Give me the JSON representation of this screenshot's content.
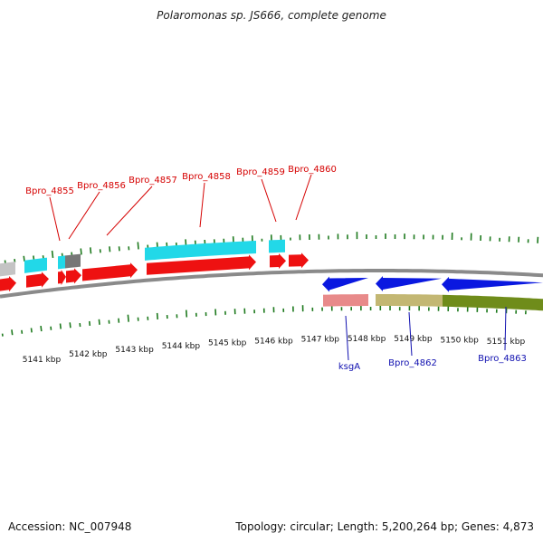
{
  "title": "Polaromonas sp. JS666, complete genome",
  "footer": {
    "accession": "Accession: NC_007948",
    "topology": "Topology: circular; Length: 5,200,264 bp; Genes: 4,873"
  },
  "chart_data": {
    "type": "genome-map",
    "axis_unit": "kbp",
    "axis_ticks": [
      {
        "label": "5141 kbp",
        "kbp": 5141
      },
      {
        "label": "5142 kbp",
        "kbp": 5142
      },
      {
        "label": "5143 kbp",
        "kbp": 5143
      },
      {
        "label": "5144 kbp",
        "kbp": 5144
      },
      {
        "label": "5145 kbp",
        "kbp": 5145
      },
      {
        "label": "5146 kbp",
        "kbp": 5146
      },
      {
        "label": "5147 kbp",
        "kbp": 5147
      },
      {
        "label": "5148 kbp",
        "kbp": 5148
      },
      {
        "label": "5149 kbp",
        "kbp": 5149
      },
      {
        "label": "5150 kbp",
        "kbp": 5150
      },
      {
        "label": "5151 kbp",
        "kbp": 5151
      }
    ],
    "forward_genes": [
      "Bpro_4855",
      "Bpro_4856",
      "Bpro_4857",
      "Bpro_4858",
      "Bpro_4859",
      "Bpro_4860"
    ],
    "reverse_genes": [
      "ksgA",
      "Bpro_4862",
      "Bpro_4863"
    ],
    "colors": {
      "forward_cds": "#ee1111",
      "forward_feature": "#22d8e8",
      "reverse_cds": "#0a18e0",
      "reverse_feature_a": "#e88a8a",
      "reverse_feature_b": "#c3b773",
      "reverse_feature_c": "#6f8c1a",
      "gc_bar": "#1e7a1e",
      "backbone": "#8a8a8a",
      "forward_label": "#d50000",
      "reverse_label": "#1010b0"
    }
  }
}
